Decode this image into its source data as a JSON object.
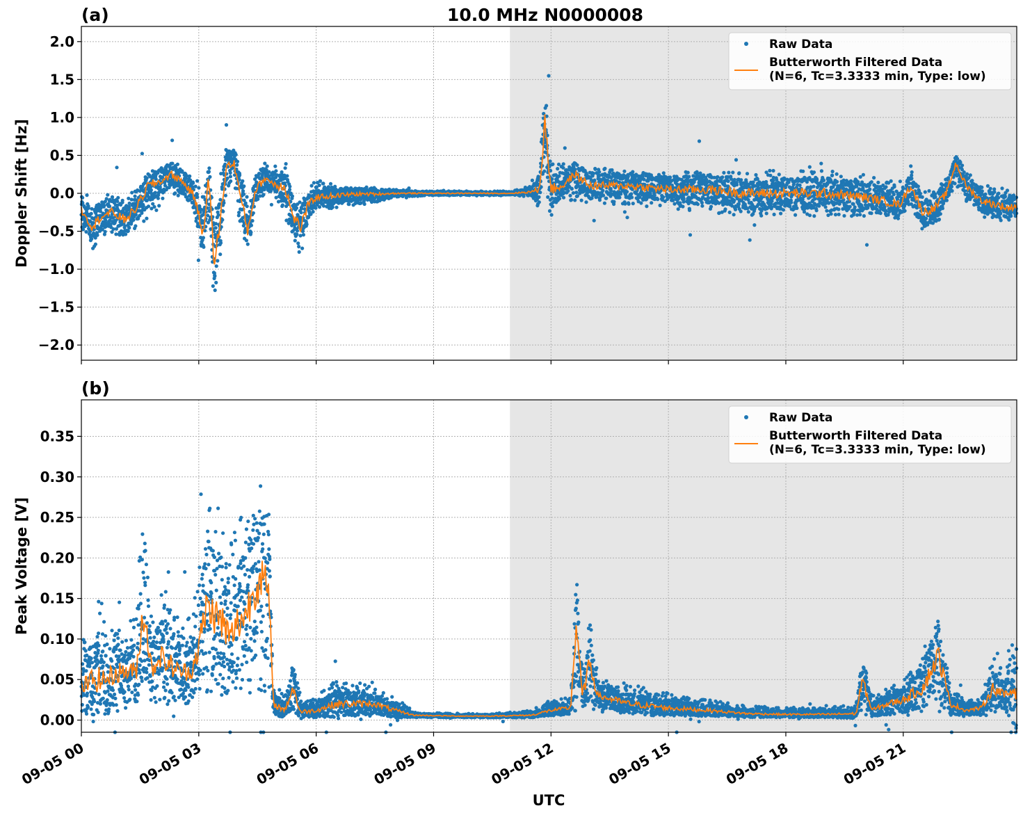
{
  "figure": {
    "title": "10.0 MHz N0000008",
    "xlabel": "UTC"
  },
  "colors": {
    "raw": "#1f77b4",
    "filtered": "#ff7f0e",
    "shade": "#e6e6e6"
  },
  "chart_data": [
    {
      "type": "scatter",
      "panel_label": "(a)",
      "ylabel": "Doppler Shift [Hz]",
      "xlim_hours": [
        0,
        23.9
      ],
      "ylim": [
        -2.2,
        2.2
      ],
      "shaded_range_hours": [
        10.95,
        23.9
      ],
      "grid": true,
      "legend_position": "top-right",
      "x_ticks": [
        {
          "h": 0,
          "label": "09-05 00"
        },
        {
          "h": 3,
          "label": "09-05 03"
        },
        {
          "h": 6,
          "label": "09-05 06"
        },
        {
          "h": 9,
          "label": "09-05 09"
        },
        {
          "h": 12,
          "label": "09-05 12"
        },
        {
          "h": 15,
          "label": "09-05 15"
        },
        {
          "h": 18,
          "label": "09-05 18"
        },
        {
          "h": 21,
          "label": "09-05 21"
        }
      ],
      "y_ticks": [
        {
          "v": 2.0,
          "label": "2.0"
        },
        {
          "v": 1.5,
          "label": "1.5"
        },
        {
          "v": 1.0,
          "label": "1.0"
        },
        {
          "v": 0.5,
          "label": "0.5"
        },
        {
          "v": 0.0,
          "label": "0.0"
        },
        {
          "v": -0.5,
          "label": "−0.5"
        },
        {
          "v": -1.0,
          "label": "−1.0"
        },
        {
          "v": -1.5,
          "label": "−1.5"
        },
        {
          "v": -2.0,
          "label": "−2.0"
        }
      ],
      "series": [
        {
          "name": "Raw Data",
          "style": "points"
        },
        {
          "name": "Butterworth Filtered Data",
          "name_line2": "(N=6, Tc=3.3333 min, Type: low)",
          "style": "line"
        }
      ],
      "envelope": [
        [
          0.0,
          -0.55,
          0.05,
          -0.2
        ],
        [
          0.3,
          -0.75,
          -0.1,
          -0.45
        ],
        [
          0.5,
          -0.55,
          0.0,
          -0.3
        ],
        [
          0.8,
          -0.55,
          0.0,
          -0.25
        ],
        [
          1.1,
          -0.6,
          0.0,
          -0.35
        ],
        [
          1.4,
          -0.45,
          0.05,
          -0.2
        ],
        [
          1.7,
          -0.35,
          0.25,
          0.1
        ],
        [
          2.0,
          -0.2,
          0.3,
          0.15
        ],
        [
          2.3,
          0.0,
          0.45,
          0.25
        ],
        [
          2.6,
          -0.1,
          0.35,
          0.15
        ],
        [
          2.9,
          -0.3,
          0.2,
          -0.05
        ],
        [
          3.1,
          -0.8,
          0.1,
          -0.55
        ],
        [
          3.25,
          -0.4,
          0.4,
          0.2
        ],
        [
          3.4,
          -1.5,
          -0.3,
          -0.95
        ],
        [
          3.55,
          -0.8,
          0.2,
          -0.35
        ],
        [
          3.7,
          0.0,
          0.6,
          0.35
        ],
        [
          3.9,
          0.1,
          0.6,
          0.4
        ],
        [
          4.05,
          -0.4,
          0.4,
          0.0
        ],
        [
          4.25,
          -0.75,
          -0.1,
          -0.5
        ],
        [
          4.45,
          -0.2,
          0.3,
          0.05
        ],
        [
          4.7,
          0.0,
          0.4,
          0.2
        ],
        [
          5.0,
          -0.1,
          0.35,
          0.1
        ],
        [
          5.2,
          -0.3,
          0.45,
          0.1
        ],
        [
          5.4,
          -0.6,
          0.0,
          -0.3
        ],
        [
          5.6,
          -0.85,
          -0.1,
          -0.45
        ],
        [
          5.8,
          -0.4,
          0.1,
          -0.15
        ],
        [
          6.0,
          -0.2,
          0.2,
          -0.05
        ],
        [
          6.5,
          -0.2,
          0.1,
          -0.03
        ],
        [
          7.0,
          -0.15,
          0.1,
          -0.01
        ],
        [
          7.5,
          -0.12,
          0.08,
          -0.01
        ],
        [
          8.0,
          -0.05,
          0.05,
          0.0
        ],
        [
          9.0,
          -0.03,
          0.03,
          0.0
        ],
        [
          10.0,
          -0.03,
          0.03,
          0.0
        ],
        [
          11.0,
          -0.03,
          0.03,
          0.0
        ],
        [
          11.5,
          -0.05,
          0.1,
          0.02
        ],
        [
          11.7,
          -0.2,
          0.3,
          0.05
        ],
        [
          11.85,
          0.0,
          1.4,
          0.95
        ],
        [
          12.0,
          -0.3,
          0.4,
          0.05
        ],
        [
          12.3,
          -0.1,
          0.4,
          0.1
        ],
        [
          12.6,
          -0.1,
          0.35,
          0.25
        ],
        [
          13.0,
          -0.15,
          0.35,
          0.1
        ],
        [
          14.0,
          -0.15,
          0.3,
          0.1
        ],
        [
          15.0,
          -0.2,
          0.3,
          0.05
        ],
        [
          16.0,
          -0.25,
          0.3,
          0.05
        ],
        [
          17.0,
          -0.3,
          0.3,
          0.0
        ],
        [
          18.0,
          -0.3,
          0.3,
          0.0
        ],
        [
          19.0,
          -0.3,
          0.3,
          0.0
        ],
        [
          20.0,
          -0.3,
          0.25,
          -0.05
        ],
        [
          20.5,
          -0.3,
          0.2,
          -0.1
        ],
        [
          20.9,
          -0.35,
          0.15,
          -0.15
        ],
        [
          21.2,
          -0.15,
          0.3,
          0.1
        ],
        [
          21.5,
          -0.5,
          0.05,
          -0.25
        ],
        [
          21.8,
          -0.45,
          0.1,
          -0.2
        ],
        [
          22.1,
          -0.2,
          0.2,
          0.0
        ],
        [
          22.35,
          0.1,
          0.55,
          0.4
        ],
        [
          22.6,
          -0.1,
          0.3,
          0.1
        ],
        [
          23.0,
          -0.3,
          0.1,
          -0.1
        ],
        [
          23.4,
          -0.4,
          0.1,
          -0.15
        ],
        [
          23.7,
          -0.4,
          0.05,
          -0.2
        ],
        [
          23.9,
          -0.35,
          0.05,
          -0.15
        ]
      ]
    },
    {
      "type": "scatter",
      "panel_label": "(b)",
      "ylabel": "Peak Voltage [V]",
      "xlim_hours": [
        0,
        23.9
      ],
      "ylim": [
        -0.015,
        0.395
      ],
      "shaded_range_hours": [
        10.95,
        23.9
      ],
      "grid": true,
      "legend_position": "top-right",
      "x_ticks": [
        {
          "h": 0,
          "label": "09-05 00"
        },
        {
          "h": 3,
          "label": "09-05 03"
        },
        {
          "h": 6,
          "label": "09-05 06"
        },
        {
          "h": 9,
          "label": "09-05 09"
        },
        {
          "h": 12,
          "label": "09-05 12"
        },
        {
          "h": 15,
          "label": "09-05 15"
        },
        {
          "h": 18,
          "label": "09-05 18"
        },
        {
          "h": 21,
          "label": "09-05 21"
        }
      ],
      "y_ticks": [
        {
          "v": 0.35,
          "label": "0.35"
        },
        {
          "v": 0.3,
          "label": "0.30"
        },
        {
          "v": 0.25,
          "label": "0.25"
        },
        {
          "v": 0.2,
          "label": "0.20"
        },
        {
          "v": 0.15,
          "label": "0.15"
        },
        {
          "v": 0.1,
          "label": "0.10"
        },
        {
          "v": 0.05,
          "label": "0.05"
        },
        {
          "v": 0.0,
          "label": "0.00"
        }
      ],
      "series": [
        {
          "name": "Raw Data",
          "style": "points"
        },
        {
          "name": "Butterworth Filtered Data",
          "name_line2": "(N=6, Tc=3.3333 min, Type: low)",
          "style": "line"
        }
      ],
      "envelope": [
        [
          0.0,
          0.01,
          0.09,
          0.04
        ],
        [
          0.3,
          0.01,
          0.16,
          0.05
        ],
        [
          0.6,
          0.01,
          0.14,
          0.05
        ],
        [
          1.0,
          0.01,
          0.12,
          0.06
        ],
        [
          1.4,
          0.02,
          0.13,
          0.06
        ],
        [
          1.6,
          0.02,
          0.3,
          0.14
        ],
        [
          1.8,
          0.01,
          0.12,
          0.06
        ],
        [
          2.0,
          0.02,
          0.15,
          0.08
        ],
        [
          2.2,
          0.02,
          0.17,
          0.07
        ],
        [
          2.5,
          0.02,
          0.12,
          0.06
        ],
        [
          2.8,
          0.02,
          0.13,
          0.06
        ],
        [
          3.0,
          0.02,
          0.18,
          0.09
        ],
        [
          3.2,
          0.03,
          0.27,
          0.14
        ],
        [
          3.4,
          0.03,
          0.25,
          0.13
        ],
        [
          3.6,
          0.03,
          0.29,
          0.12
        ],
        [
          3.8,
          0.03,
          0.22,
          0.1
        ],
        [
          4.0,
          0.03,
          0.26,
          0.12
        ],
        [
          4.2,
          0.03,
          0.24,
          0.13
        ],
        [
          4.4,
          0.03,
          0.28,
          0.16
        ],
        [
          4.6,
          0.03,
          0.3,
          0.18
        ],
        [
          4.8,
          0.03,
          0.26,
          0.15
        ],
        [
          4.9,
          0.01,
          0.05,
          0.02
        ],
        [
          5.2,
          0.005,
          0.03,
          0.012
        ],
        [
          5.4,
          0.005,
          0.09,
          0.04
        ],
        [
          5.6,
          0.005,
          0.03,
          0.01
        ],
        [
          6.0,
          0.005,
          0.03,
          0.012
        ],
        [
          6.5,
          0.005,
          0.05,
          0.02
        ],
        [
          7.0,
          0.005,
          0.05,
          0.02
        ],
        [
          7.5,
          0.005,
          0.04,
          0.02
        ],
        [
          8.0,
          0.004,
          0.03,
          0.012
        ],
        [
          8.5,
          0.003,
          0.01,
          0.006
        ],
        [
          9.5,
          0.003,
          0.008,
          0.005
        ],
        [
          10.5,
          0.003,
          0.008,
          0.005
        ],
        [
          11.5,
          0.003,
          0.012,
          0.006
        ],
        [
          12.0,
          0.006,
          0.025,
          0.012
        ],
        [
          12.5,
          0.008,
          0.03,
          0.015
        ],
        [
          12.65,
          0.01,
          0.18,
          0.12
        ],
        [
          12.8,
          0.01,
          0.06,
          0.03
        ],
        [
          13.0,
          0.01,
          0.15,
          0.07
        ],
        [
          13.2,
          0.01,
          0.05,
          0.03
        ],
        [
          14.0,
          0.008,
          0.045,
          0.02
        ],
        [
          15.0,
          0.006,
          0.035,
          0.015
        ],
        [
          16.0,
          0.005,
          0.025,
          0.012
        ],
        [
          17.0,
          0.005,
          0.018,
          0.008
        ],
        [
          18.0,
          0.004,
          0.015,
          0.007
        ],
        [
          19.0,
          0.004,
          0.015,
          0.007
        ],
        [
          19.8,
          0.004,
          0.02,
          0.008
        ],
        [
          19.95,
          0.004,
          0.08,
          0.05
        ],
        [
          20.2,
          0.005,
          0.03,
          0.012
        ],
        [
          20.6,
          0.006,
          0.04,
          0.02
        ],
        [
          21.0,
          0.006,
          0.05,
          0.025
        ],
        [
          21.5,
          0.006,
          0.09,
          0.04
        ],
        [
          21.9,
          0.01,
          0.14,
          0.08
        ],
        [
          22.2,
          0.006,
          0.04,
          0.02
        ],
        [
          22.6,
          0.006,
          0.025,
          0.012
        ],
        [
          23.0,
          0.006,
          0.03,
          0.015
        ],
        [
          23.3,
          0.01,
          0.08,
          0.04
        ],
        [
          23.6,
          0.01,
          0.06,
          0.03
        ],
        [
          23.9,
          0.01,
          0.16,
          0.04
        ]
      ]
    }
  ]
}
